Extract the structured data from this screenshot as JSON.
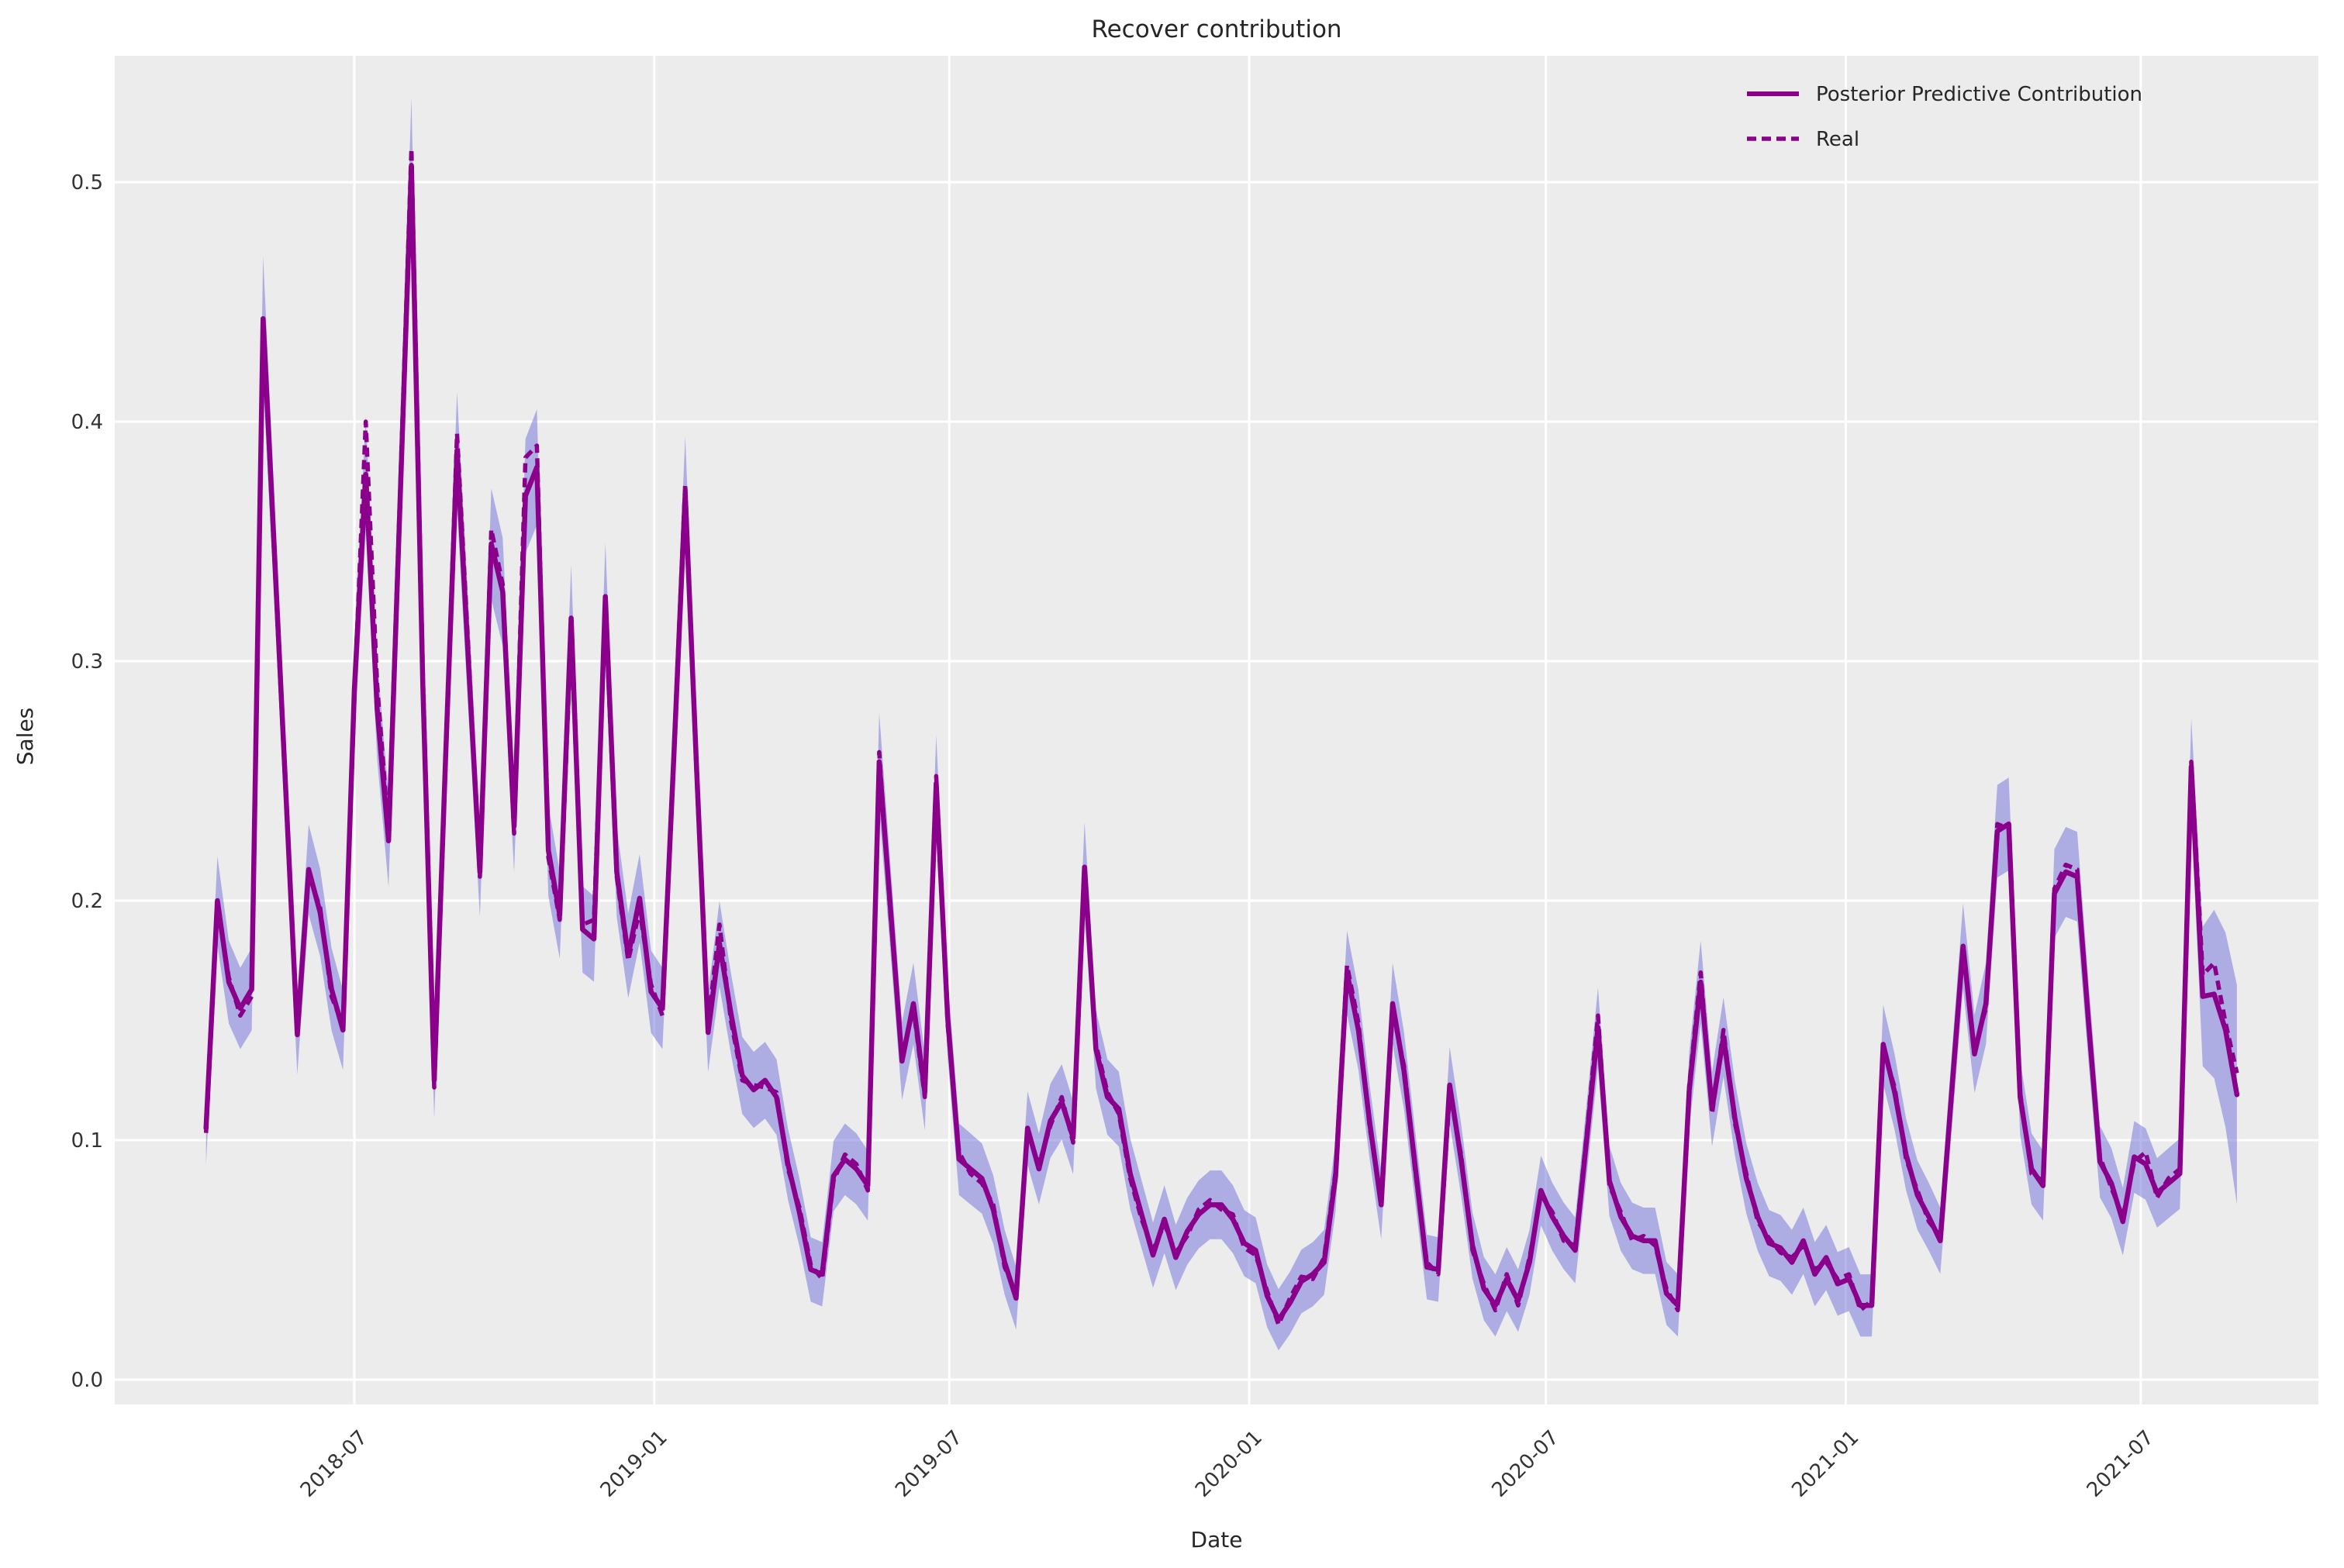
{
  "title": "Recover contribution",
  "axes": {
    "x_label": "Date",
    "y_label": "Sales"
  },
  "legend": [
    {
      "label": "Posterior Predictive Contribution",
      "style": "solid"
    },
    {
      "label": "Real",
      "style": "dashed"
    }
  ],
  "colors": {
    "line": "#8B008B",
    "band": "#6e6edc",
    "band_opacity": 0.5,
    "plot_bg": "#ececec",
    "grid": "#ffffff",
    "text": "#262626"
  },
  "chart_data": {
    "type": "line",
    "title": "Recover contribution",
    "xlabel": "Date",
    "ylabel": "Sales",
    "grid": true,
    "legend_position": "upper right",
    "xlim": [
      "2018-02-04",
      "2021-10-18"
    ],
    "ylim": [
      -0.005,
      0.551
    ],
    "x_ticks": [
      "2018-07",
      "2019-01",
      "2019-07",
      "2020-01",
      "2020-07",
      "2021-01",
      "2021-07"
    ],
    "y_ticks": [
      "0.0",
      "0.1",
      "0.2",
      "0.3",
      "0.4",
      "0.5"
    ],
    "x": [
      "2018-04-01",
      "2018-04-08",
      "2018-04-15",
      "2018-04-22",
      "2018-04-29",
      "2018-05-06",
      "2018-05-13",
      "2018-05-20",
      "2018-05-27",
      "2018-06-03",
      "2018-06-10",
      "2018-06-17",
      "2018-06-24",
      "2018-07-01",
      "2018-07-08",
      "2018-07-15",
      "2018-07-22",
      "2018-07-29",
      "2018-08-05",
      "2018-08-12",
      "2018-08-19",
      "2018-08-26",
      "2018-09-02",
      "2018-09-09",
      "2018-09-16",
      "2018-09-23",
      "2018-09-30",
      "2018-10-07",
      "2018-10-14",
      "2018-10-21",
      "2018-10-28",
      "2018-11-04",
      "2018-11-11",
      "2018-11-18",
      "2018-11-25",
      "2018-12-02",
      "2018-12-09",
      "2018-12-16",
      "2018-12-23",
      "2018-12-30",
      "2019-01-06",
      "2019-01-13",
      "2019-01-20",
      "2019-01-27",
      "2019-02-03",
      "2019-02-10",
      "2019-02-17",
      "2019-02-24",
      "2019-03-03",
      "2019-03-10",
      "2019-03-17",
      "2019-03-24",
      "2019-03-31",
      "2019-04-07",
      "2019-04-14",
      "2019-04-21",
      "2019-04-28",
      "2019-05-05",
      "2019-05-12",
      "2019-05-19",
      "2019-05-26",
      "2019-06-02",
      "2019-06-09",
      "2019-06-16",
      "2019-06-23",
      "2019-06-30",
      "2019-07-07",
      "2019-07-14",
      "2019-07-21",
      "2019-07-28",
      "2019-08-04",
      "2019-08-11",
      "2019-08-18",
      "2019-08-25",
      "2019-09-01",
      "2019-09-08",
      "2019-09-15",
      "2019-09-22",
      "2019-09-29",
      "2019-10-06",
      "2019-10-13",
      "2019-10-20",
      "2019-10-27",
      "2019-11-03",
      "2019-11-10",
      "2019-11-17",
      "2019-11-24",
      "2019-12-01",
      "2019-12-08",
      "2019-12-15",
      "2019-12-22",
      "2019-12-29",
      "2020-01-05",
      "2020-01-12",
      "2020-01-19",
      "2020-01-26",
      "2020-02-02",
      "2020-02-09",
      "2020-02-16",
      "2020-02-23",
      "2020-03-01",
      "2020-03-08",
      "2020-03-15",
      "2020-03-22",
      "2020-03-29",
      "2020-04-05",
      "2020-04-12",
      "2020-04-19",
      "2020-04-26",
      "2020-05-03",
      "2020-05-10",
      "2020-05-17",
      "2020-05-24",
      "2020-05-31",
      "2020-06-07",
      "2020-06-14",
      "2020-06-21",
      "2020-06-28",
      "2020-07-05",
      "2020-07-12",
      "2020-07-19",
      "2020-07-26",
      "2020-08-02",
      "2020-08-09",
      "2020-08-16",
      "2020-08-23",
      "2020-08-30",
      "2020-09-06",
      "2020-09-13",
      "2020-09-20",
      "2020-09-27",
      "2020-10-04",
      "2020-10-11",
      "2020-10-18",
      "2020-10-25",
      "2020-11-01",
      "2020-11-08",
      "2020-11-15",
      "2020-11-22",
      "2020-11-29",
      "2020-12-06",
      "2020-12-13",
      "2020-12-20",
      "2020-12-27",
      "2021-01-03",
      "2021-01-10",
      "2021-01-17",
      "2021-01-24",
      "2021-01-31",
      "2021-02-07",
      "2021-02-14",
      "2021-02-21",
      "2021-02-28",
      "2021-03-07",
      "2021-03-14",
      "2021-03-21",
      "2021-03-28",
      "2021-04-04",
      "2021-04-11",
      "2021-04-18",
      "2021-04-25",
      "2021-05-02",
      "2021-05-09",
      "2021-05-16",
      "2021-05-23",
      "2021-05-30",
      "2021-06-06",
      "2021-06-13",
      "2021-06-20",
      "2021-06-27",
      "2021-07-04",
      "2021-07-11",
      "2021-07-18",
      "2021-07-25",
      "2021-08-01",
      "2021-08-08",
      "2021-08-15",
      "2021-08-22",
      "2021-08-29"
    ],
    "series": [
      {
        "name": "Posterior Predictive Contribution",
        "style": "solid",
        "values": [
          0.105,
          0.2,
          0.166,
          0.155,
          0.163,
          0.443,
          0.345,
          0.245,
          0.144,
          0.213,
          0.195,
          0.163,
          0.146,
          0.288,
          0.378,
          0.28,
          0.225,
          0.366,
          0.507,
          0.29,
          0.125,
          0.26,
          0.388,
          0.3,
          0.212,
          0.349,
          0.329,
          0.231,
          0.369,
          0.381,
          0.221,
          0.194,
          0.318,
          0.188,
          0.184,
          0.327,
          0.212,
          0.177,
          0.201,
          0.162,
          0.155,
          0.26,
          0.37,
          0.255,
          0.145,
          0.182,
          0.153,
          0.127,
          0.121,
          0.125,
          0.118,
          0.09,
          0.07,
          0.046,
          0.044,
          0.085,
          0.092,
          0.088,
          0.081,
          0.258,
          0.196,
          0.133,
          0.157,
          0.12,
          0.249,
          0.151,
          0.092,
          0.088,
          0.084,
          0.071,
          0.049,
          0.034,
          0.105,
          0.088,
          0.108,
          0.116,
          0.101,
          0.214,
          0.138,
          0.118,
          0.113,
          0.086,
          0.069,
          0.052,
          0.067,
          0.051,
          0.062,
          0.069,
          0.073,
          0.073,
          0.067,
          0.057,
          0.054,
          0.035,
          0.025,
          0.032,
          0.041,
          0.044,
          0.049,
          0.085,
          0.17,
          0.146,
          0.107,
          0.073,
          0.157,
          0.129,
          0.088,
          0.047,
          0.046,
          0.123,
          0.092,
          0.056,
          0.038,
          0.031,
          0.042,
          0.033,
          0.049,
          0.079,
          0.068,
          0.06,
          0.054,
          0.1,
          0.147,
          0.083,
          0.068,
          0.06,
          0.058,
          0.058,
          0.036,
          0.031,
          0.121,
          0.166,
          0.113,
          0.143,
          0.109,
          0.084,
          0.068,
          0.057,
          0.055,
          0.049,
          0.058,
          0.044,
          0.051,
          0.04,
          0.042,
          0.031,
          0.031,
          0.14,
          0.12,
          0.094,
          0.077,
          0.068,
          0.058,
          0.12,
          0.181,
          0.136,
          0.157,
          0.229,
          0.232,
          0.118,
          0.088,
          0.081,
          0.203,
          0.212,
          0.21,
          0.149,
          0.091,
          0.082,
          0.066,
          0.093,
          0.09,
          0.078,
          0.082,
          0.086,
          0.256,
          0.16,
          0.161,
          0.146,
          0.119
        ]
      },
      {
        "name": "Real",
        "style": "dashed",
        "values": [
          0.103,
          0.198,
          0.168,
          0.152,
          0.16,
          0.44,
          0.342,
          0.243,
          0.146,
          0.211,
          0.197,
          0.16,
          0.148,
          0.285,
          0.4,
          0.29,
          0.228,
          0.37,
          0.514,
          0.295,
          0.122,
          0.258,
          0.395,
          0.305,
          0.21,
          0.355,
          0.332,
          0.228,
          0.385,
          0.39,
          0.218,
          0.192,
          0.312,
          0.19,
          0.192,
          0.322,
          0.21,
          0.175,
          0.196,
          0.165,
          0.152,
          0.262,
          0.374,
          0.252,
          0.148,
          0.19,
          0.15,
          0.125,
          0.123,
          0.122,
          0.12,
          0.088,
          0.072,
          0.048,
          0.042,
          0.083,
          0.094,
          0.09,
          0.079,
          0.262,
          0.193,
          0.135,
          0.155,
          0.118,
          0.252,
          0.148,
          0.095,
          0.086,
          0.082,
          0.073,
          0.047,
          0.036,
          0.103,
          0.09,
          0.106,
          0.118,
          0.099,
          0.212,
          0.14,
          0.12,
          0.111,
          0.084,
          0.067,
          0.054,
          0.065,
          0.053,
          0.06,
          0.071,
          0.075,
          0.071,
          0.069,
          0.055,
          0.052,
          0.037,
          0.023,
          0.034,
          0.043,
          0.042,
          0.051,
          0.087,
          0.173,
          0.149,
          0.105,
          0.075,
          0.154,
          0.131,
          0.086,
          0.049,
          0.044,
          0.12,
          0.094,
          0.054,
          0.04,
          0.029,
          0.044,
          0.031,
          0.051,
          0.077,
          0.07,
          0.058,
          0.056,
          0.102,
          0.152,
          0.081,
          0.07,
          0.058,
          0.06,
          0.056,
          0.038,
          0.029,
          0.123,
          0.17,
          0.111,
          0.146,
          0.107,
          0.086,
          0.066,
          0.059,
          0.053,
          0.051,
          0.056,
          0.046,
          0.049,
          0.042,
          0.044,
          0.029,
          0.033,
          0.138,
          0.122,
          0.092,
          0.079,
          0.066,
          0.06,
          0.118,
          0.18,
          0.138,
          0.155,
          0.232,
          0.23,
          0.12,
          0.086,
          0.083,
          0.205,
          0.215,
          0.213,
          0.147,
          0.093,
          0.08,
          0.068,
          0.091,
          0.095,
          0.076,
          0.084,
          0.088,
          0.258,
          0.169,
          0.174,
          0.149,
          0.128
        ]
      }
    ],
    "band": {
      "around_series": "Posterior Predictive Contribution",
      "halfwidth_base": 0.012,
      "halfwidth_scale": 0.032,
      "tail_extra": [
        0.012,
        0.018,
        0.024,
        0.03
      ]
    }
  }
}
